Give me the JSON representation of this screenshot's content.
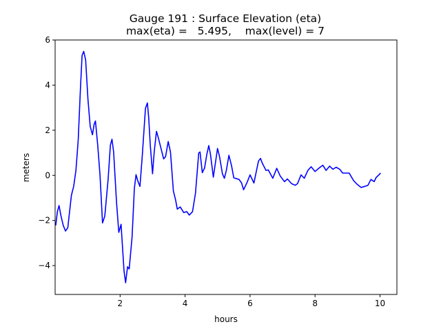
{
  "chart_data": {
    "type": "line",
    "title": "Gauge 191 : Surface Elevation (eta)",
    "subtitle": "max(eta) =   5.495,    max(level) = 7",
    "xlabel": "hours",
    "ylabel": "meters",
    "xlim": [
      0,
      10.52
    ],
    "ylim": [
      -5.28,
      6
    ],
    "xticks": [
      2,
      4,
      6,
      8,
      10
    ],
    "yticks": [
      -4,
      -2,
      0,
      2,
      4,
      6
    ],
    "grid": false,
    "series": [
      {
        "name": "eta",
        "color": "#0000ff",
        "x": [
          0.02,
          0.07,
          0.12,
          0.18,
          0.25,
          0.32,
          0.39,
          0.5,
          0.57,
          0.64,
          0.71,
          0.78,
          0.83,
          0.88,
          0.94,
          1.01,
          1.08,
          1.15,
          1.2,
          1.24,
          1.31,
          1.38,
          1.46,
          1.53,
          1.63,
          1.7,
          1.75,
          1.8,
          1.89,
          1.96,
          2.03,
          2.08,
          2.12,
          2.17,
          2.23,
          2.28,
          2.37,
          2.44,
          2.49,
          2.55,
          2.61,
          2.68,
          2.78,
          2.84,
          2.88,
          2.93,
          3.0,
          3.05,
          3.12,
          3.18,
          3.25,
          3.34,
          3.4,
          3.48,
          3.55,
          3.64,
          3.71,
          3.76,
          3.85,
          3.96,
          4.05,
          4.13,
          4.23,
          4.32,
          4.42,
          4.46,
          4.53,
          4.6,
          4.67,
          4.73,
          4.78,
          4.87,
          4.92,
          5.0,
          5.06,
          5.15,
          5.21,
          5.27,
          5.35,
          5.43,
          5.5,
          5.66,
          5.74,
          5.8,
          5.9,
          6.0,
          6.12,
          6.26,
          6.32,
          6.38,
          6.49,
          6.56,
          6.7,
          6.82,
          6.93,
          7.06,
          7.15,
          7.28,
          7.39,
          7.46,
          7.57,
          7.67,
          7.78,
          7.88,
          8.0,
          8.13,
          8.24,
          8.34,
          8.45,
          8.55,
          8.65,
          8.76,
          8.85,
          9.05,
          9.19,
          9.29,
          9.42,
          9.53,
          9.63,
          9.72,
          9.82,
          9.88,
          10.02
        ],
        "y": [
          -2.22,
          -1.61,
          -1.34,
          -1.8,
          -2.22,
          -2.47,
          -2.32,
          -0.89,
          -0.49,
          0.22,
          1.56,
          3.89,
          5.31,
          5.495,
          5.11,
          3.39,
          2.17,
          1.8,
          2.26,
          2.41,
          1.34,
          0.03,
          -2.11,
          -1.8,
          -0.18,
          1.34,
          1.6,
          1.04,
          -1.19,
          -2.53,
          -2.17,
          -3.33,
          -4.24,
          -4.76,
          -4.05,
          -4.15,
          -2.72,
          -0.58,
          0.03,
          -0.27,
          -0.49,
          0.83,
          2.97,
          3.21,
          2.56,
          1.34,
          0.07,
          1.04,
          1.95,
          1.65,
          1.25,
          0.73,
          0.83,
          1.5,
          1.04,
          -0.69,
          -1.1,
          -1.5,
          -1.4,
          -1.65,
          -1.61,
          -1.76,
          -1.61,
          -0.79,
          0.99,
          1.04,
          0.12,
          0.33,
          0.94,
          1.32,
          0.94,
          -0.08,
          0.43,
          1.19,
          0.83,
          0.07,
          -0.13,
          0.22,
          0.89,
          0.43,
          -0.11,
          -0.18,
          -0.34,
          -0.64,
          -0.34,
          0.02,
          -0.34,
          0.63,
          0.75,
          0.53,
          0.22,
          0.24,
          -0.13,
          0.31,
          -0.03,
          -0.28,
          -0.16,
          -0.37,
          -0.44,
          -0.37,
          0.02,
          -0.13,
          0.22,
          0.38,
          0.17,
          0.33,
          0.45,
          0.22,
          0.41,
          0.27,
          0.36,
          0.27,
          0.1,
          0.1,
          -0.24,
          -0.39,
          -0.54,
          -0.49,
          -0.44,
          -0.18,
          -0.28,
          -0.1,
          0.1
        ]
      }
    ]
  }
}
